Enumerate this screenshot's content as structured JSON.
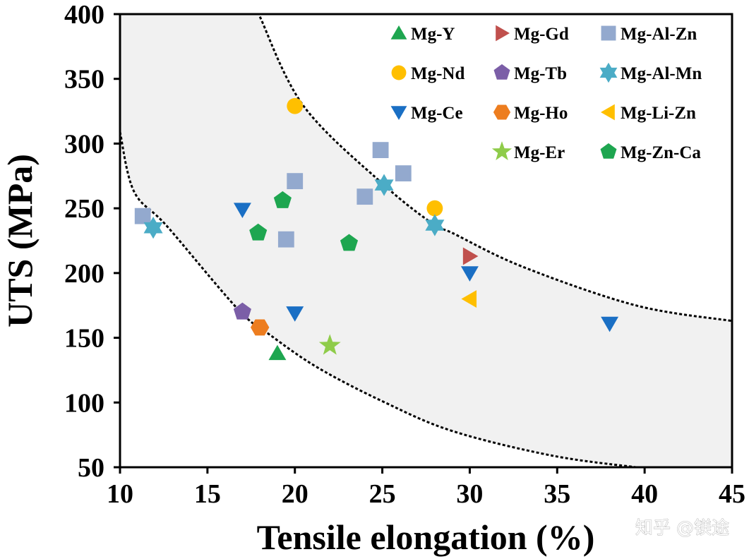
{
  "chart_data": {
    "type": "scatter",
    "title": "",
    "xlabel": "Tensile elongation (%)",
    "ylabel": "UTS (MPa)",
    "xlim": [
      10,
      45
    ],
    "ylim": [
      50,
      400
    ],
    "xticks": [
      10,
      15,
      20,
      25,
      30,
      35,
      40,
      45
    ],
    "yticks": [
      50,
      100,
      150,
      200,
      250,
      300,
      350,
      400
    ],
    "grid": false,
    "legend_position": "top-right",
    "shaded_band": {
      "fill": "#f1f1f1",
      "line_style": "dotted",
      "line_color": "#000000",
      "lower_boundary": [
        [
          10,
          309
        ],
        [
          10.8,
          263
        ],
        [
          12.7,
          236
        ],
        [
          16.75,
          172
        ],
        [
          18.6,
          152
        ],
        [
          21.3,
          127
        ],
        [
          25,
          101
        ],
        [
          29,
          78
        ],
        [
          34.7,
          59
        ],
        [
          39.5,
          50
        ]
      ],
      "upper_boundary": [
        [
          18,
          398
        ],
        [
          20.5,
          329
        ],
        [
          25.1,
          268
        ],
        [
          28,
          237
        ],
        [
          29,
          231
        ],
        [
          33,
          205
        ],
        [
          39.5,
          175
        ],
        [
          45,
          163
        ]
      ]
    },
    "series": [
      {
        "name": "Mg-Y",
        "marker": "triangle-up",
        "color": "#1ea650",
        "points": [
          [
            19,
            138
          ]
        ]
      },
      {
        "name": "Mg-Nd",
        "marker": "circle",
        "color": "#ffbf00",
        "points": [
          [
            20,
            329
          ],
          [
            28,
            250
          ]
        ]
      },
      {
        "name": "Mg-Ce",
        "marker": "triangle-down",
        "color": "#1a6fc4",
        "points": [
          [
            17,
            249
          ],
          [
            20,
            169
          ],
          [
            30,
            200
          ],
          [
            38,
            161
          ]
        ]
      },
      {
        "name": "Mg-Gd",
        "marker": "triangle-right",
        "color": "#c0504d",
        "points": [
          [
            30,
            213
          ]
        ]
      },
      {
        "name": "Mg-Tb",
        "marker": "pentagon",
        "color": "#7b5ea7",
        "points": [
          [
            17,
            170
          ]
        ]
      },
      {
        "name": "Mg-Ho",
        "marker": "hexagon",
        "color": "#ed7d1f",
        "points": [
          [
            18,
            158
          ]
        ]
      },
      {
        "name": "Mg-Er",
        "marker": "star5",
        "color": "#8fcc4a",
        "points": [
          [
            22,
            144
          ]
        ]
      },
      {
        "name": "Mg-Al-Zn",
        "marker": "square",
        "color": "#93a9ce",
        "points": [
          [
            11.3,
            244
          ],
          [
            20,
            271
          ],
          [
            19.5,
            226
          ],
          [
            24.9,
            295
          ],
          [
            26.2,
            277
          ],
          [
            24,
            259
          ]
        ]
      },
      {
        "name": "Mg-Al-Mn",
        "marker": "star6",
        "color": "#4bacc6",
        "points": [
          [
            11.9,
            235
          ],
          [
            25.1,
            268
          ],
          [
            28,
            237
          ]
        ]
      },
      {
        "name": "Mg-Li-Zn",
        "marker": "triangle-left",
        "color": "#ffbf00",
        "points": [
          [
            30,
            180
          ]
        ]
      },
      {
        "name": "Mg-Zn-Ca",
        "marker": "pentagon",
        "color": "#1ea650",
        "points": [
          [
            19.3,
            256
          ],
          [
            17.9,
            231
          ],
          [
            23.1,
            223
          ]
        ]
      }
    ],
    "legend_layout": [
      [
        "Mg-Y",
        "Mg-Gd",
        "Mg-Al-Zn"
      ],
      [
        "Mg-Nd",
        "Mg-Tb",
        "Mg-Al-Mn"
      ],
      [
        "Mg-Ce",
        "Mg-Ho",
        "Mg-Li-Zn"
      ],
      [
        null,
        "Mg-Er",
        "Mg-Zn-Ca"
      ]
    ]
  },
  "watermark": "知乎 @镁途"
}
